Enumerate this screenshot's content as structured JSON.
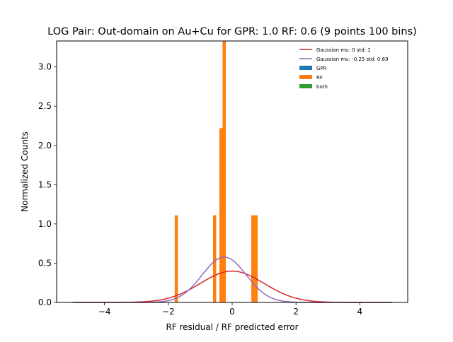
{
  "chart_data": {
    "type": "bar",
    "title": "LOG Pair: Out-domain on Au+Cu for GPR: 1.0 RF: 0.6 (9 points 100 bins)",
    "xlabel": "RF residual / RF predicted error",
    "ylabel": "Normalized Counts",
    "xlim": [
      -5.5,
      5.5
    ],
    "ylim": [
      0,
      3.33
    ],
    "xticks": [
      -4,
      -2,
      0,
      2,
      4
    ],
    "xtick_labels": [
      "−4",
      "−2",
      "0",
      "2",
      "4"
    ],
    "yticks": [
      0.0,
      0.5,
      1.0,
      1.5,
      2.0,
      2.5,
      3.0
    ],
    "ytick_labels": [
      "0.0",
      "0.5",
      "1.0",
      "1.5",
      "2.0",
      "2.5",
      "3.0"
    ],
    "bin_width": 0.1,
    "grid": false,
    "legend_position": "top-right",
    "histograms": [
      {
        "name": "GPR",
        "color": "#1f77b4",
        "bins": [
          {
            "x": -0.25,
            "height": 1.11
          }
        ]
      },
      {
        "name": "RF",
        "color": "#ff7f0e",
        "bins": [
          {
            "x": -1.75,
            "height": 1.11
          },
          {
            "x": -0.55,
            "height": 1.11
          },
          {
            "x": -0.35,
            "height": 2.22
          },
          {
            "x": -0.25,
            "height": 3.33
          },
          {
            "x": 0.65,
            "height": 1.11
          },
          {
            "x": 0.75,
            "height": 1.11
          }
        ]
      },
      {
        "name": "both",
        "color": "#2ca02c",
        "bins": []
      }
    ],
    "curves": [
      {
        "name": "Gaussian mu: 0 std: 1",
        "color": "#d62728",
        "mu": 0,
        "std": 1,
        "x_range": [
          -5,
          5
        ]
      },
      {
        "name": "Gaussian mu: -0.25 std: 0.69",
        "color": "#9467bd",
        "mu": -0.25,
        "std": 0.69,
        "x_range": [
          -5,
          5
        ]
      }
    ]
  }
}
